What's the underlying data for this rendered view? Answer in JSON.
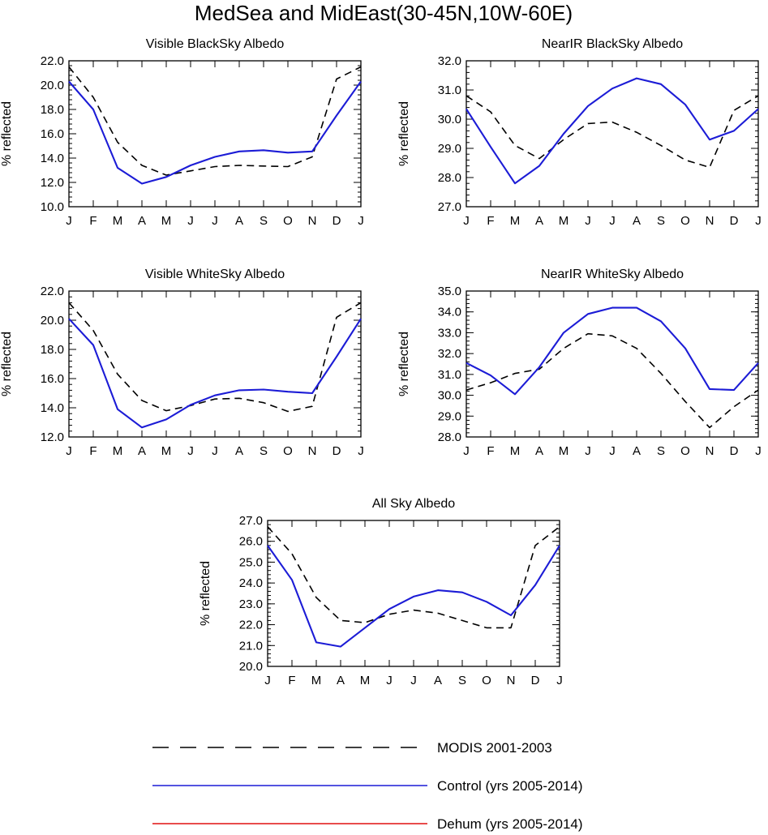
{
  "figure": {
    "title": "MedSea and MidEast(30-45N,10W-60E)"
  },
  "colors": {
    "modis": "#000000",
    "control": "#1c1cd6",
    "dehum": "#e01010"
  },
  "legend": {
    "items": [
      {
        "label": "MODIS 2001-2003",
        "style": "dashed",
        "color_key": "modis"
      },
      {
        "label": "Control (yrs 2005-2014)",
        "style": "solid",
        "color_key": "control"
      },
      {
        "label": "Dehum (yrs 2005-2014)",
        "style": "solid",
        "color_key": "dehum"
      }
    ]
  },
  "chart_data": [
    {
      "type": "line",
      "title": "Visible BlackSky Albedo",
      "xlabel": "",
      "ylabel": "% reflected",
      "categories": [
        "J",
        "F",
        "M",
        "A",
        "M",
        "J",
        "J",
        "A",
        "S",
        "O",
        "N",
        "D",
        "J"
      ],
      "ylim": [
        10.0,
        22.0
      ],
      "yticks": [
        10.0,
        12.0,
        14.0,
        16.0,
        18.0,
        20.0,
        22.0
      ],
      "series": [
        {
          "name": "MODIS 2001-2003",
          "style": "dashed",
          "values": [
            21.5,
            19.0,
            15.3,
            13.4,
            12.6,
            12.95,
            13.3,
            13.4,
            13.35,
            13.3,
            14.1,
            20.5,
            21.5
          ]
        },
        {
          "name": "Control (yrs 2005-2014)",
          "style": "solid",
          "values": [
            20.3,
            18.0,
            13.2,
            11.9,
            12.45,
            13.4,
            14.1,
            14.55,
            14.65,
            14.45,
            14.55,
            17.5,
            20.3
          ]
        }
      ]
    },
    {
      "type": "line",
      "title": "NearIR BlackSky Albedo",
      "xlabel": "",
      "ylabel": "% reflected",
      "categories": [
        "J",
        "F",
        "M",
        "A",
        "M",
        "J",
        "J",
        "A",
        "S",
        "O",
        "N",
        "D",
        "J"
      ],
      "ylim": [
        27.0,
        32.0
      ],
      "yticks": [
        27.0,
        28.0,
        29.0,
        30.0,
        31.0,
        32.0
      ],
      "series": [
        {
          "name": "MODIS 2001-2003",
          "style": "dashed",
          "values": [
            30.8,
            30.25,
            29.1,
            28.65,
            29.3,
            29.85,
            29.9,
            29.55,
            29.1,
            28.6,
            28.35,
            30.3,
            30.8
          ]
        },
        {
          "name": "Control (yrs 2005-2014)",
          "style": "solid",
          "values": [
            30.35,
            29.05,
            27.8,
            28.4,
            29.5,
            30.45,
            31.05,
            31.4,
            31.2,
            30.5,
            29.3,
            29.6,
            30.35
          ]
        }
      ]
    },
    {
      "type": "line",
      "title": "Visible WhiteSky Albedo",
      "xlabel": "",
      "ylabel": "% reflected",
      "categories": [
        "J",
        "F",
        "M",
        "A",
        "M",
        "J",
        "J",
        "A",
        "S",
        "O",
        "N",
        "D",
        "J"
      ],
      "ylim": [
        12.0,
        22.0
      ],
      "yticks": [
        12.0,
        14.0,
        16.0,
        18.0,
        20.0,
        22.0
      ],
      "series": [
        {
          "name": "MODIS 2001-2003",
          "style": "dashed",
          "values": [
            21.2,
            19.3,
            16.3,
            14.5,
            13.8,
            14.15,
            14.6,
            14.65,
            14.35,
            13.75,
            14.1,
            20.2,
            21.2
          ]
        },
        {
          "name": "Control (yrs 2005-2014)",
          "style": "solid",
          "values": [
            20.1,
            18.3,
            13.9,
            12.65,
            13.2,
            14.2,
            14.85,
            15.2,
            15.25,
            15.1,
            15.0,
            17.5,
            20.1
          ]
        }
      ]
    },
    {
      "type": "line",
      "title": "NearIR WhiteSky Albedo",
      "xlabel": "",
      "ylabel": "% reflected",
      "categories": [
        "J",
        "F",
        "M",
        "A",
        "M",
        "J",
        "J",
        "A",
        "S",
        "O",
        "N",
        "D",
        "J"
      ],
      "ylim": [
        28.0,
        35.0
      ],
      "yticks": [
        28.0,
        29.0,
        30.0,
        31.0,
        32.0,
        33.0,
        34.0,
        35.0
      ],
      "series": [
        {
          "name": "MODIS 2001-2003",
          "style": "dashed",
          "values": [
            30.25,
            30.6,
            31.05,
            31.25,
            32.25,
            32.95,
            32.85,
            32.25,
            31.05,
            29.7,
            28.45,
            29.45,
            30.25
          ]
        },
        {
          "name": "Control (yrs 2005-2014)",
          "style": "solid",
          "values": [
            31.55,
            30.95,
            30.05,
            31.35,
            33.0,
            33.9,
            34.2,
            34.2,
            33.55,
            32.25,
            30.3,
            30.25,
            31.55
          ]
        }
      ]
    },
    {
      "type": "line",
      "title": "All Sky Albedo",
      "xlabel": "",
      "ylabel": "% reflected",
      "categories": [
        "J",
        "F",
        "M",
        "A",
        "M",
        "J",
        "J",
        "A",
        "S",
        "O",
        "N",
        "D",
        "J"
      ],
      "ylim": [
        20.0,
        27.0
      ],
      "yticks": [
        20.0,
        21.0,
        22.0,
        23.0,
        24.0,
        25.0,
        26.0,
        27.0
      ],
      "series": [
        {
          "name": "MODIS 2001-2003",
          "style": "dashed",
          "values": [
            26.7,
            25.4,
            23.3,
            22.2,
            22.1,
            22.5,
            22.7,
            22.55,
            22.2,
            21.85,
            21.85,
            25.8,
            26.7
          ]
        },
        {
          "name": "Control (yrs 2005-2014)",
          "style": "solid",
          "values": [
            25.8,
            24.15,
            21.15,
            20.95,
            21.85,
            22.75,
            23.35,
            23.65,
            23.55,
            23.1,
            22.45,
            23.9,
            25.8
          ]
        }
      ]
    }
  ]
}
